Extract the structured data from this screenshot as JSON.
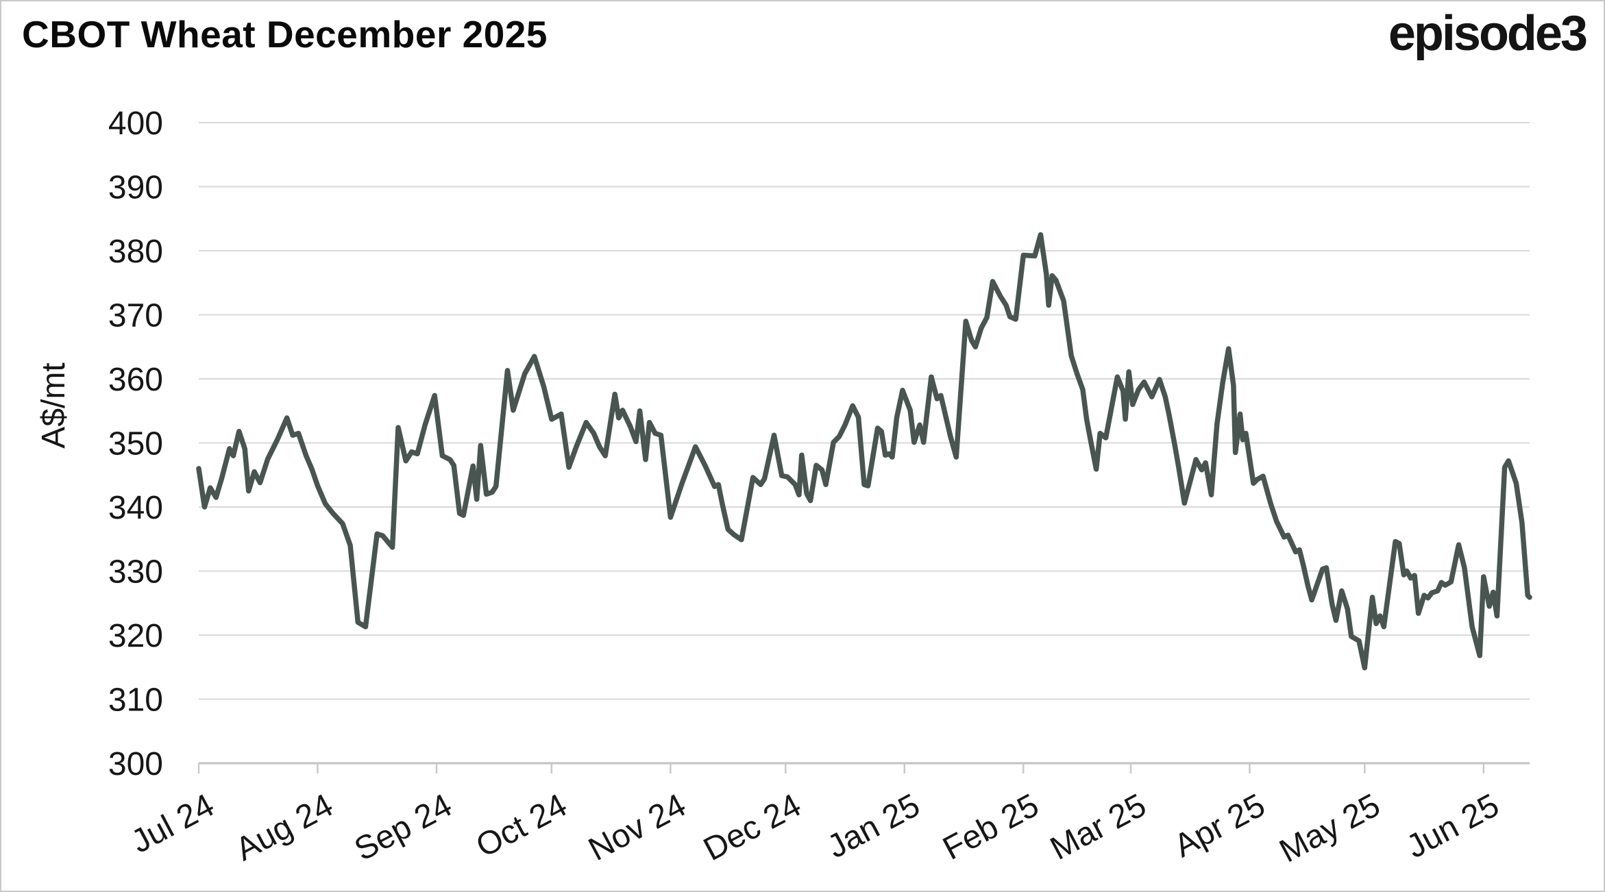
{
  "header": {
    "title": "CBOT Wheat December 2025",
    "logo": "episode3"
  },
  "chart_data": {
    "type": "line",
    "title": "CBOT Wheat December 2025",
    "ylabel": "A$/mt",
    "ylim": [
      300,
      400
    ],
    "y_ticks": [
      300,
      310,
      320,
      330,
      340,
      350,
      360,
      370,
      380,
      390,
      400
    ],
    "x_tick_labels": [
      "Jul 24",
      "Aug 24",
      "Sep 24",
      "Oct 24",
      "Nov 24",
      "Dec 24",
      "Jan 25",
      "Feb 25",
      "Mar 25",
      "Apr 25",
      "May 25",
      "Jun 25"
    ],
    "x_tick_days": [
      0,
      31,
      62,
      92,
      123,
      153,
      184,
      215,
      243,
      274,
      304,
      335
    ],
    "days_total": 347,
    "grid": "horizontal",
    "legend_position": "none",
    "line_color": "#485551",
    "grid_color": "#d9d9d9",
    "baseline_color": "#c2c2c2",
    "tick_color": "#c9c9c9",
    "text_color": "#161616",
    "series": [
      {
        "name": "CBOT Wheat December 2025 (A$/mt)",
        "points": [
          [
            0,
            346
          ],
          [
            1.5,
            340
          ],
          [
            3,
            343
          ],
          [
            4.5,
            341.5
          ],
          [
            6,
            344.5
          ],
          [
            8,
            349.1
          ],
          [
            9,
            348
          ],
          [
            10.5,
            351.8
          ],
          [
            12,
            349.1
          ],
          [
            13,
            342.5
          ],
          [
            14.5,
            345.5
          ],
          [
            16,
            343.8
          ],
          [
            18,
            347.5
          ],
          [
            20.5,
            350.5
          ],
          [
            23,
            353.9
          ],
          [
            24.5,
            351.2
          ],
          [
            26,
            351.5
          ],
          [
            28,
            348
          ],
          [
            29.5,
            345.9
          ],
          [
            31,
            343.3
          ],
          [
            33,
            340.5
          ],
          [
            35,
            339
          ],
          [
            37.5,
            337.4
          ],
          [
            39.5,
            334
          ],
          [
            41.5,
            322
          ],
          [
            43.5,
            321.3
          ],
          [
            46.5,
            335.8
          ],
          [
            48,
            335.5
          ],
          [
            50.5,
            333.7
          ],
          [
            52,
            352.4
          ],
          [
            54,
            347.2
          ],
          [
            55.5,
            348.6
          ],
          [
            57,
            348.3
          ],
          [
            59,
            352.8
          ],
          [
            61.5,
            357.4
          ],
          [
            63.5,
            348
          ],
          [
            65.5,
            347.4
          ],
          [
            66.5,
            346.5
          ],
          [
            68,
            339
          ],
          [
            69,
            338.7
          ],
          [
            71.5,
            346.4
          ],
          [
            72.5,
            341.2
          ],
          [
            73.5,
            349.6
          ],
          [
            75,
            342
          ],
          [
            76.5,
            342.3
          ],
          [
            77.5,
            343.2
          ],
          [
            80.5,
            361.3
          ],
          [
            82,
            355.1
          ],
          [
            85,
            360.8
          ],
          [
            87.5,
            363.5
          ],
          [
            90,
            358.7
          ],
          [
            92,
            353.7
          ],
          [
            94.5,
            354.5
          ],
          [
            96.5,
            346.2
          ],
          [
            98.5,
            349.5
          ],
          [
            101,
            353.2
          ],
          [
            103,
            351.5
          ],
          [
            104.5,
            349.4
          ],
          [
            106,
            348
          ],
          [
            108.5,
            357.6
          ],
          [
            109.5,
            353.9
          ],
          [
            110.5,
            355.1
          ],
          [
            112.5,
            352.6
          ],
          [
            114,
            350.2
          ],
          [
            115,
            355
          ],
          [
            116.5,
            347.4
          ],
          [
            117.5,
            353.2
          ],
          [
            119,
            351.5
          ],
          [
            120.5,
            351.2
          ],
          [
            123,
            338.4
          ],
          [
            126,
            343.7
          ],
          [
            129.5,
            349.4
          ],
          [
            132,
            346.5
          ],
          [
            134.5,
            343.2
          ],
          [
            135.5,
            343.5
          ],
          [
            136.5,
            340.5
          ],
          [
            138,
            336.5
          ],
          [
            139.5,
            335.7
          ],
          [
            141.5,
            334.9
          ],
          [
            144.5,
            344.6
          ],
          [
            146.5,
            343.5
          ],
          [
            147.5,
            344.4
          ],
          [
            150,
            351.2
          ],
          [
            152,
            344.9
          ],
          [
            153.5,
            344.7
          ],
          [
            155.5,
            343.5
          ],
          [
            156.5,
            341.9
          ],
          [
            157.2,
            348.1
          ],
          [
            158.5,
            342.1
          ],
          [
            159.5,
            341
          ],
          [
            161,
            346.5
          ],
          [
            162.5,
            345.8
          ],
          [
            163.5,
            343.5
          ],
          [
            165.5,
            350.1
          ],
          [
            167,
            351
          ],
          [
            168.5,
            352.8
          ],
          [
            170.5,
            355.8
          ],
          [
            172,
            354
          ],
          [
            173.5,
            343.5
          ],
          [
            174.5,
            343.3
          ],
          [
            177,
            352.3
          ],
          [
            178,
            351.8
          ],
          [
            179,
            348.1
          ],
          [
            180,
            348.3
          ],
          [
            180.8,
            347.8
          ],
          [
            182,
            354
          ],
          [
            183.5,
            358.2
          ],
          [
            185.5,
            355.1
          ],
          [
            186.5,
            350.1
          ],
          [
            188,
            352.8
          ],
          [
            189,
            350.1
          ],
          [
            191,
            360.3
          ],
          [
            192.5,
            356.9
          ],
          [
            193.5,
            357.4
          ],
          [
            196,
            351
          ],
          [
            197.5,
            347.8
          ],
          [
            200,
            369
          ],
          [
            201.5,
            366
          ],
          [
            202.5,
            365
          ],
          [
            204,
            367.9
          ],
          [
            205.5,
            369.6
          ],
          [
            207,
            375.2
          ],
          [
            209,
            372.9
          ],
          [
            210.5,
            371.5
          ],
          [
            211.5,
            369.7
          ],
          [
            213,
            369.3
          ],
          [
            215,
            379.3
          ],
          [
            218,
            379.2
          ],
          [
            219.5,
            382.5
          ],
          [
            221,
            376.4
          ],
          [
            221.6,
            371.5
          ],
          [
            222.5,
            376.1
          ],
          [
            223.5,
            375.4
          ],
          [
            225.5,
            372.2
          ],
          [
            227.5,
            363.6
          ],
          [
            229,
            360.8
          ],
          [
            230.5,
            358.3
          ],
          [
            231.5,
            353.7
          ],
          [
            232.5,
            350.5
          ],
          [
            234,
            345.9
          ],
          [
            235,
            351.5
          ],
          [
            236.5,
            350.8
          ],
          [
            239.5,
            360.3
          ],
          [
            241,
            358.1
          ],
          [
            241.6,
            353.7
          ],
          [
            242.5,
            361.1
          ],
          [
            243.5,
            356
          ],
          [
            245,
            358.3
          ],
          [
            246.5,
            359.5
          ],
          [
            248.5,
            357.2
          ],
          [
            250.5,
            359.9
          ],
          [
            252,
            357.2
          ],
          [
            253,
            354.4
          ],
          [
            254.5,
            349.6
          ],
          [
            255.5,
            346.2
          ],
          [
            257,
            340.6
          ],
          [
            260,
            347.4
          ],
          [
            261.5,
            345.8
          ],
          [
            262.5,
            346.9
          ],
          [
            264,
            341.9
          ],
          [
            265.5,
            353
          ],
          [
            267,
            359.5
          ],
          [
            268.5,
            364.7
          ],
          [
            269.8,
            359
          ],
          [
            270.3,
            348.5
          ],
          [
            271.5,
            354.5
          ],
          [
            272.2,
            350.5
          ],
          [
            273,
            351.5
          ],
          [
            275,
            343.7
          ],
          [
            276,
            344.3
          ],
          [
            277.5,
            344.8
          ],
          [
            279.5,
            340.5
          ],
          [
            281,
            337.8
          ],
          [
            283,
            335.3
          ],
          [
            284,
            335.6
          ],
          [
            286,
            333
          ],
          [
            287,
            333.3
          ],
          [
            288,
            330.9
          ],
          [
            289.2,
            327.7
          ],
          [
            290.2,
            325.5
          ],
          [
            293,
            330.3
          ],
          [
            294,
            330.5
          ],
          [
            295.5,
            324.8
          ],
          [
            296.5,
            322.3
          ],
          [
            298,
            326.9
          ],
          [
            299.5,
            324.1
          ],
          [
            300.5,
            319.8
          ],
          [
            302.5,
            319.1
          ],
          [
            304,
            314.9
          ],
          [
            306,
            325.9
          ],
          [
            307,
            321.8
          ],
          [
            308,
            323
          ],
          [
            309,
            321.3
          ],
          [
            312,
            334.6
          ],
          [
            313,
            334.3
          ],
          [
            314.2,
            329.4
          ],
          [
            315,
            330
          ],
          [
            316,
            328.9
          ],
          [
            317,
            329.3
          ],
          [
            318,
            323.4
          ],
          [
            319.5,
            326.2
          ],
          [
            320.5,
            325.8
          ],
          [
            321.5,
            326.6
          ],
          [
            323,
            326.9
          ],
          [
            324,
            328.2
          ],
          [
            325,
            327.8
          ],
          [
            326.5,
            328.3
          ],
          [
            328.5,
            334.1
          ],
          [
            330,
            330.5
          ],
          [
            332,
            321.3
          ],
          [
            334,
            316.8
          ],
          [
            335,
            329.1
          ],
          [
            336.5,
            324.5
          ],
          [
            337.5,
            326.7
          ],
          [
            338.5,
            323
          ],
          [
            340.5,
            346.2
          ],
          [
            341.5,
            347.2
          ],
          [
            343.5,
            343.7
          ],
          [
            345,
            337.6
          ],
          [
            346.5,
            326.2
          ],
          [
            347,
            325.9
          ]
        ]
      }
    ]
  }
}
